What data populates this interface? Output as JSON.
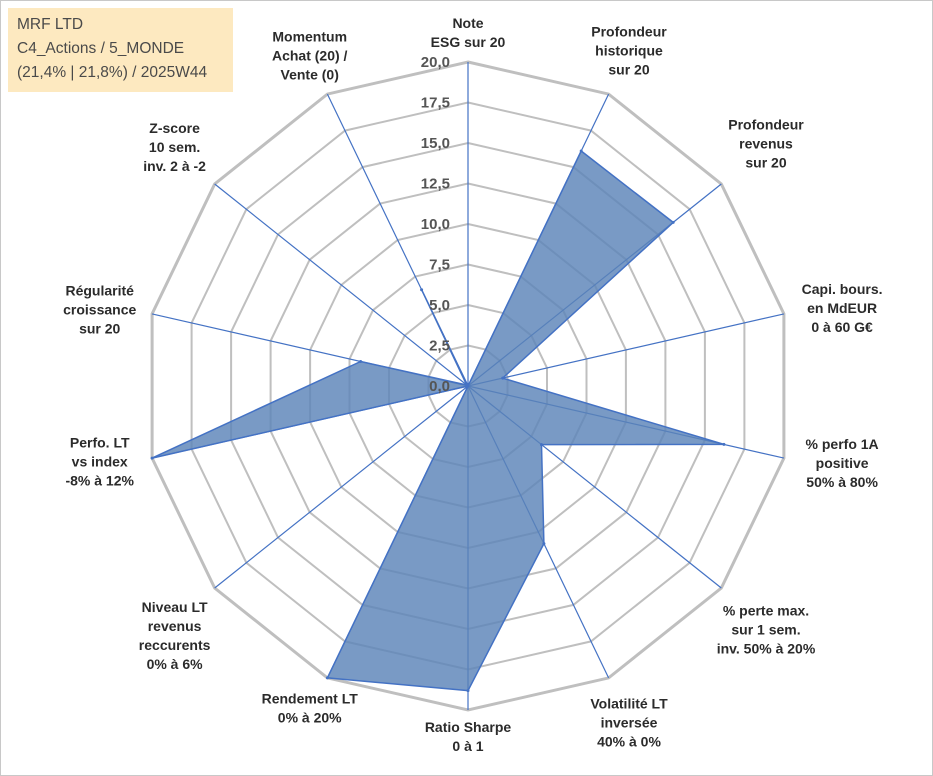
{
  "info": {
    "name": "MRF LTD",
    "category": "C4_Actions / 5_MONDE",
    "period": "(21,4% | 21,8%) / 2025W44"
  },
  "chart_data": {
    "type": "radar",
    "title": "",
    "scale_min": 0,
    "scale_max": 20,
    "ticks": [
      {
        "value": 0,
        "label": "0,0"
      },
      {
        "value": 2.5,
        "label": "2,5"
      },
      {
        "value": 5,
        "label": "5,0"
      },
      {
        "value": 7.5,
        "label": "7,5"
      },
      {
        "value": 10,
        "label": "10,0"
      },
      {
        "value": 12.5,
        "label": "12,5"
      },
      {
        "value": 15,
        "label": "15,0"
      },
      {
        "value": 17.5,
        "label": "17,5"
      },
      {
        "value": 20,
        "label": "20,0"
      }
    ],
    "axes": [
      {
        "lines": [
          "Note",
          "ESG sur 20"
        ]
      },
      {
        "lines": [
          "Profondeur",
          "historique",
          "sur 20"
        ]
      },
      {
        "lines": [
          "Profondeur",
          "revenus",
          "sur 20"
        ]
      },
      {
        "lines": [
          "Capi. bours.",
          "en MdEUR",
          "0 à 60 G€"
        ]
      },
      {
        "lines": [
          "% perfo 1A",
          "positive",
          "50% à 80%"
        ]
      },
      {
        "lines": [
          "% perte max.",
          "sur 1 sem.",
          "inv. 50% à 20%"
        ]
      },
      {
        "lines": [
          "Volatilité LT",
          "inversée",
          "40% à 0%"
        ]
      },
      {
        "lines": [
          "Ratio Sharpe",
          "0 à 1"
        ]
      },
      {
        "lines": [
          "Rendement LT",
          "0% à 20%"
        ]
      },
      {
        "lines": [
          "Niveau LT",
          "revenus",
          "reccurents",
          "0% à 6%"
        ]
      },
      {
        "lines": [
          "Perfo. LT",
          "vs index",
          "-8% à 12%"
        ]
      },
      {
        "lines": [
          "Régularité",
          "croissance",
          "sur 20"
        ]
      },
      {
        "lines": [
          "Z-score",
          "10 sem.",
          "inv. 2 à -2"
        ]
      },
      {
        "lines": [
          "Momentum",
          "Achat (20) /",
          "Vente (0)"
        ]
      }
    ],
    "series": [
      {
        "name": "MRF LTD",
        "values": [
          0,
          16.1,
          16.2,
          2.2,
          16.2,
          5.8,
          10.8,
          18.8,
          20,
          0,
          20,
          6.8,
          0.1,
          6.6
        ]
      }
    ],
    "colors": {
      "fill": "#5b84b8",
      "outline": "#4472c4",
      "spoke": "#4472c4",
      "grid": "#bfbfbf"
    }
  }
}
